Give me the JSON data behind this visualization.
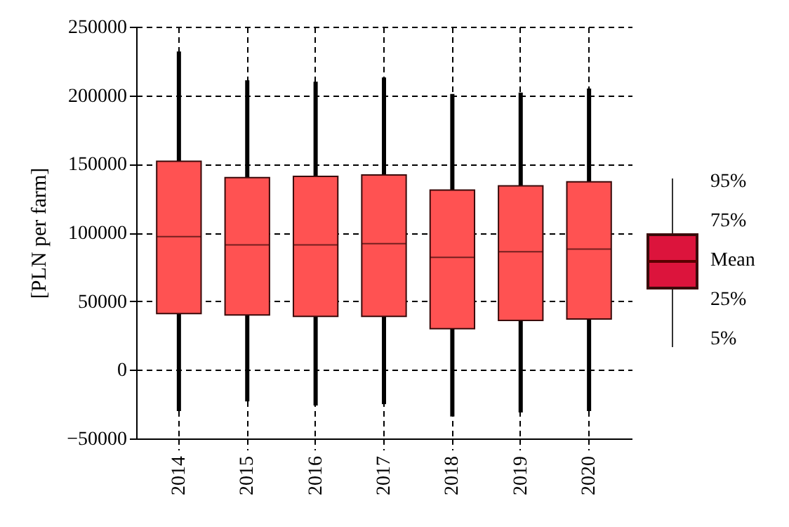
{
  "chart_data": {
    "type": "box",
    "ylabel": "[PLN per farm]",
    "categories": [
      "2014",
      "2015",
      "2016",
      "2017",
      "2018",
      "2019",
      "2020"
    ],
    "series": [
      {
        "color": "#ff5252",
        "boxes": [
          {
            "low": -30000,
            "q1": 41000,
            "median": 97000,
            "q3": 152000,
            "high": 232000
          },
          {
            "low": -23000,
            "q1": 40000,
            "median": 91000,
            "q3": 140000,
            "high": 211000
          },
          {
            "low": -26000,
            "q1": 39000,
            "median": 91000,
            "q3": 141000,
            "high": 210000
          },
          {
            "low": -25000,
            "q1": 39000,
            "median": 92000,
            "q3": 142000,
            "high": 213000
          },
          {
            "low": -34000,
            "q1": 30000,
            "median": 82000,
            "q3": 131000,
            "high": 201000
          },
          {
            "low": -31000,
            "q1": 36000,
            "median": 86000,
            "q3": 134000,
            "high": 202000
          },
          {
            "low": -30000,
            "q1": 37000,
            "median": 88000,
            "q3": 137000,
            "high": 205000
          }
        ]
      }
    ],
    "ylim": [
      -50000,
      250000
    ],
    "yticks": [
      -50000,
      0,
      50000,
      100000,
      150000,
      200000,
      250000
    ],
    "grid": true,
    "annotations": [
      "95%",
      "75%",
      "Mean",
      "25%",
      "5%"
    ]
  }
}
